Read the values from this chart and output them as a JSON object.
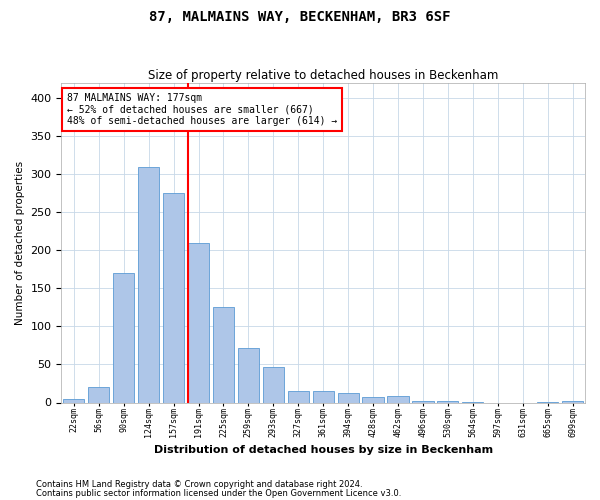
{
  "title": "87, MALMAINS WAY, BECKENHAM, BR3 6SF",
  "subtitle": "Size of property relative to detached houses in Beckenham",
  "xlabel": "Distribution of detached houses by size in Beckenham",
  "ylabel": "Number of detached properties",
  "footnote1": "Contains HM Land Registry data © Crown copyright and database right 2024.",
  "footnote2": "Contains public sector information licensed under the Open Government Licence v3.0.",
  "bar_labels": [
    "22sqm",
    "56sqm",
    "90sqm",
    "124sqm",
    "157sqm",
    "191sqm",
    "225sqm",
    "259sqm",
    "293sqm",
    "327sqm",
    "361sqm",
    "394sqm",
    "428sqm",
    "462sqm",
    "496sqm",
    "530sqm",
    "564sqm",
    "597sqm",
    "631sqm",
    "665sqm",
    "699sqm"
  ],
  "bar_values": [
    5,
    20,
    170,
    310,
    275,
    210,
    125,
    72,
    47,
    15,
    15,
    13,
    7,
    9,
    2,
    2,
    1,
    0,
    0,
    1,
    2
  ],
  "bar_color": "#aec6e8",
  "bar_edge_color": "#5b9bd5",
  "annotation_label": "87 MALMAINS WAY: 177sqm",
  "annotation_line1": "← 52% of detached houses are smaller (667)",
  "annotation_line2": "48% of semi-detached houses are larger (614) →",
  "vline_color": "red",
  "ylim": [
    0,
    420
  ],
  "yticks": [
    0,
    50,
    100,
    150,
    200,
    250,
    300,
    350,
    400
  ],
  "grid_color": "#c8d8e8",
  "background_color": "#ffffff"
}
